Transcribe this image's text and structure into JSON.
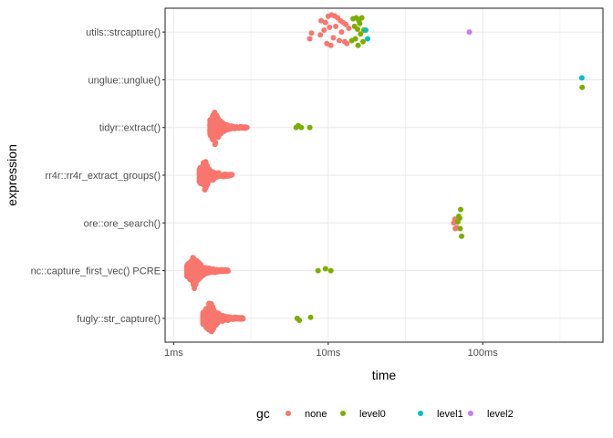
{
  "chart_data": {
    "type": "scatter",
    "xlabel": "time",
    "ylabel": "expression",
    "x_scale": "log10",
    "x_unit": "ms",
    "xlim": [
      0.88,
      600
    ],
    "x_ticks": [
      {
        "value": 1,
        "label": "1ms"
      },
      {
        "value": 10,
        "label": "10ms"
      },
      {
        "value": 100,
        "label": "100ms"
      }
    ],
    "x_minor_ticks": [
      3.162,
      31.62,
      316.2
    ],
    "categories": [
      "fugly::str_capture()",
      "nc::capture_first_vec() PCRE",
      "ore::ore_search()",
      "rr4r::rr4r_extract_groups()",
      "tidyr::extract()",
      "unglue::unglue()",
      "utils::strcapture()"
    ],
    "grid": true,
    "legend": {
      "title": "gc",
      "position": "bottom",
      "items": [
        {
          "name": "none",
          "color": "#F8766D"
        },
        {
          "name": "level0",
          "color": "#7CAE00"
        },
        {
          "name": "level1",
          "color": "#00BFC4"
        },
        {
          "name": "level2",
          "color": "#C77CFF"
        }
      ]
    },
    "series": [
      {
        "name": "utils::strcapture()",
        "group": "none",
        "x": [
          7.6,
          7.8,
          9.0,
          9.6,
          10.0,
          10.5,
          11.0,
          11.5,
          12.0,
          12.5,
          13.0,
          13.6,
          9.4,
          10.2,
          11.2,
          12.2,
          8.9,
          10.8,
          11.8,
          13.2,
          9.8,
          10.4,
          12.8
        ],
        "y": [
          -0.14,
          -0.02,
          0.24,
          0.2,
          0.33,
          0.36,
          0.34,
          0.3,
          0.24,
          0.2,
          0.16,
          0.08,
          0.04,
          0.1,
          0.12,
          0.0,
          -0.06,
          -0.12,
          -0.18,
          -0.24,
          -0.24,
          -0.28,
          -0.2
        ]
      },
      {
        "name": "utils::strcapture()",
        "group": "level0",
        "x": [
          14.5,
          15.2,
          15.8,
          16.5,
          16.0,
          14.8,
          15.5,
          17.0,
          16.2,
          15.0,
          14.2,
          16.8,
          15.6
        ],
        "y": [
          0.28,
          0.3,
          0.24,
          0.3,
          0.18,
          0.12,
          0.06,
          0.04,
          -0.04,
          -0.14,
          -0.18,
          -0.2,
          -0.28
        ]
      },
      {
        "name": "utils::strcapture()",
        "group": "level1",
        "x": [
          17.5,
          18.0
        ],
        "y": [
          0.04,
          -0.14
        ]
      },
      {
        "name": "utils::strcapture()",
        "group": "level2",
        "x": [
          82.0
        ],
        "y": [
          0.0
        ]
      },
      {
        "name": "unglue::unglue()",
        "group": "level1",
        "x": [
          438.0
        ],
        "y": [
          0.04
        ]
      },
      {
        "name": "unglue::unglue()",
        "group": "level0",
        "x": [
          440.0
        ],
        "y": [
          -0.16
        ]
      },
      {
        "name": "tidyr::extract()",
        "group": "none",
        "x": [
          1.75,
          1.8,
          1.85,
          1.9,
          2.0,
          2.1,
          2.2,
          2.35,
          2.5,
          2.7,
          2.9
        ],
        "y": [
          0.0,
          0.2,
          -0.2,
          0.1,
          -0.1,
          0.05,
          -0.05,
          0.02,
          -0.02,
          0.0,
          0.0
        ]
      },
      {
        "name": "tidyr::extract()",
        "group": "level0",
        "x": [
          6.2,
          6.4,
          6.7,
          7.6
        ],
        "y": [
          0.0,
          0.04,
          0.0,
          0.0
        ]
      },
      {
        "name": "rr4r::rr4r_extract_groups()",
        "group": "none",
        "x": [
          1.5,
          1.55,
          1.6,
          1.7,
          1.8,
          1.95,
          2.1,
          2.35
        ],
        "y": [
          0.0,
          0.2,
          -0.2,
          0.1,
          -0.1,
          0.05,
          -0.03,
          0.0
        ]
      },
      {
        "name": "ore::ore_search()",
        "group": "none",
        "x": [
          66.0,
          65.0,
          66.5,
          68.0
        ],
        "y": [
          0.08,
          0.0,
          -0.12,
          -0.1
        ]
      },
      {
        "name": "ore::ore_search()",
        "group": "level0",
        "x": [
          72.0,
          70.0,
          71.0,
          69.0,
          71.5,
          73.0
        ],
        "y": [
          0.28,
          0.14,
          0.1,
          0.02,
          -0.12,
          -0.28
        ]
      },
      {
        "name": "nc::capture_first_vec() PCRE",
        "group": "none",
        "x": [
          1.25,
          1.3,
          1.35,
          1.45,
          1.55,
          1.7,
          1.85,
          2.05,
          2.2
        ],
        "y": [
          0.0,
          0.2,
          -0.2,
          0.1,
          -0.1,
          0.05,
          -0.04,
          0.02,
          0.0
        ]
      },
      {
        "name": "nc::capture_first_vec() PCRE",
        "group": "level0",
        "x": [
          8.6,
          9.6,
          10.4
        ],
        "y": [
          0.0,
          0.04,
          0.0
        ]
      },
      {
        "name": "fugly::str_capture()",
        "group": "none",
        "x": [
          1.58,
          1.62,
          1.7,
          1.8,
          1.9,
          2.05,
          2.25,
          2.5,
          2.8
        ],
        "y": [
          0.0,
          0.2,
          -0.2,
          0.1,
          -0.1,
          0.05,
          -0.04,
          0.02,
          0.0
        ]
      },
      {
        "name": "fugly::str_capture()",
        "group": "level0",
        "x": [
          6.3,
          6.5,
          7.7
        ],
        "y": [
          0.0,
          -0.04,
          0.02
        ]
      }
    ]
  }
}
